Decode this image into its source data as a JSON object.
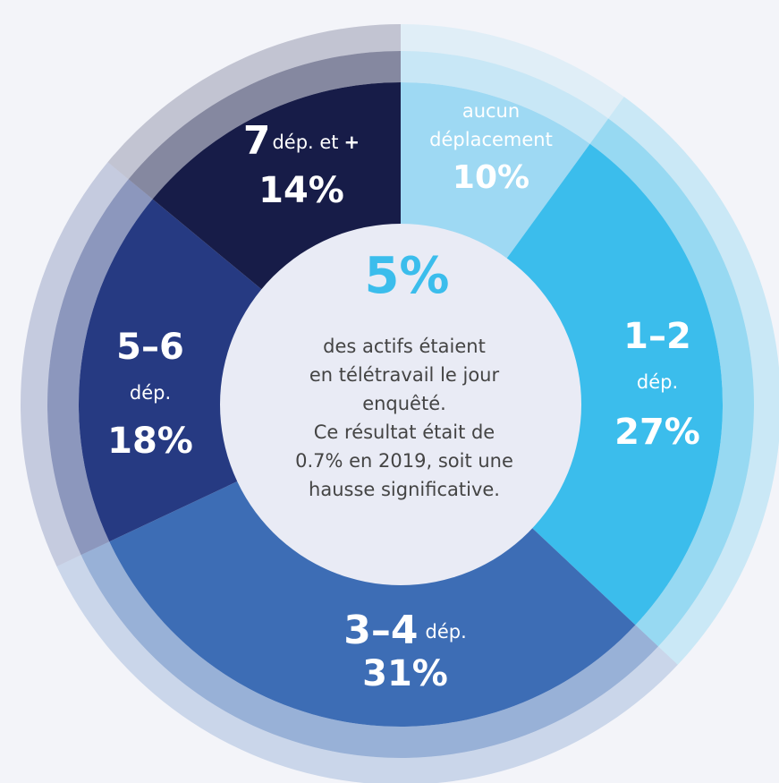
{
  "chart_data": {
    "type": "donut",
    "categories": [
      [
        "aucun",
        "déplacement"
      ],
      [
        "1–2",
        "dép."
      ],
      [
        "3–4",
        "dép."
      ],
      [
        "5–6",
        "dép."
      ],
      [
        "7",
        "dép. et",
        "+"
      ]
    ],
    "values": [
      10,
      27,
      31,
      18,
      14
    ],
    "value_labels": [
      "10%",
      "27%",
      "31%",
      "18%",
      "14%"
    ],
    "colors": [
      "#9ed9f3",
      "#3bbdec",
      "#3d6db5",
      "#263a82",
      "#171c48"
    ],
    "center": {
      "value": "5%",
      "text": [
        "des actifs étaient",
        "en télétravail le jour",
        "enquêté.",
        "Ce résultat était de",
        "0.7% en 2019, soit une",
        "hausse significative."
      ]
    }
  }
}
